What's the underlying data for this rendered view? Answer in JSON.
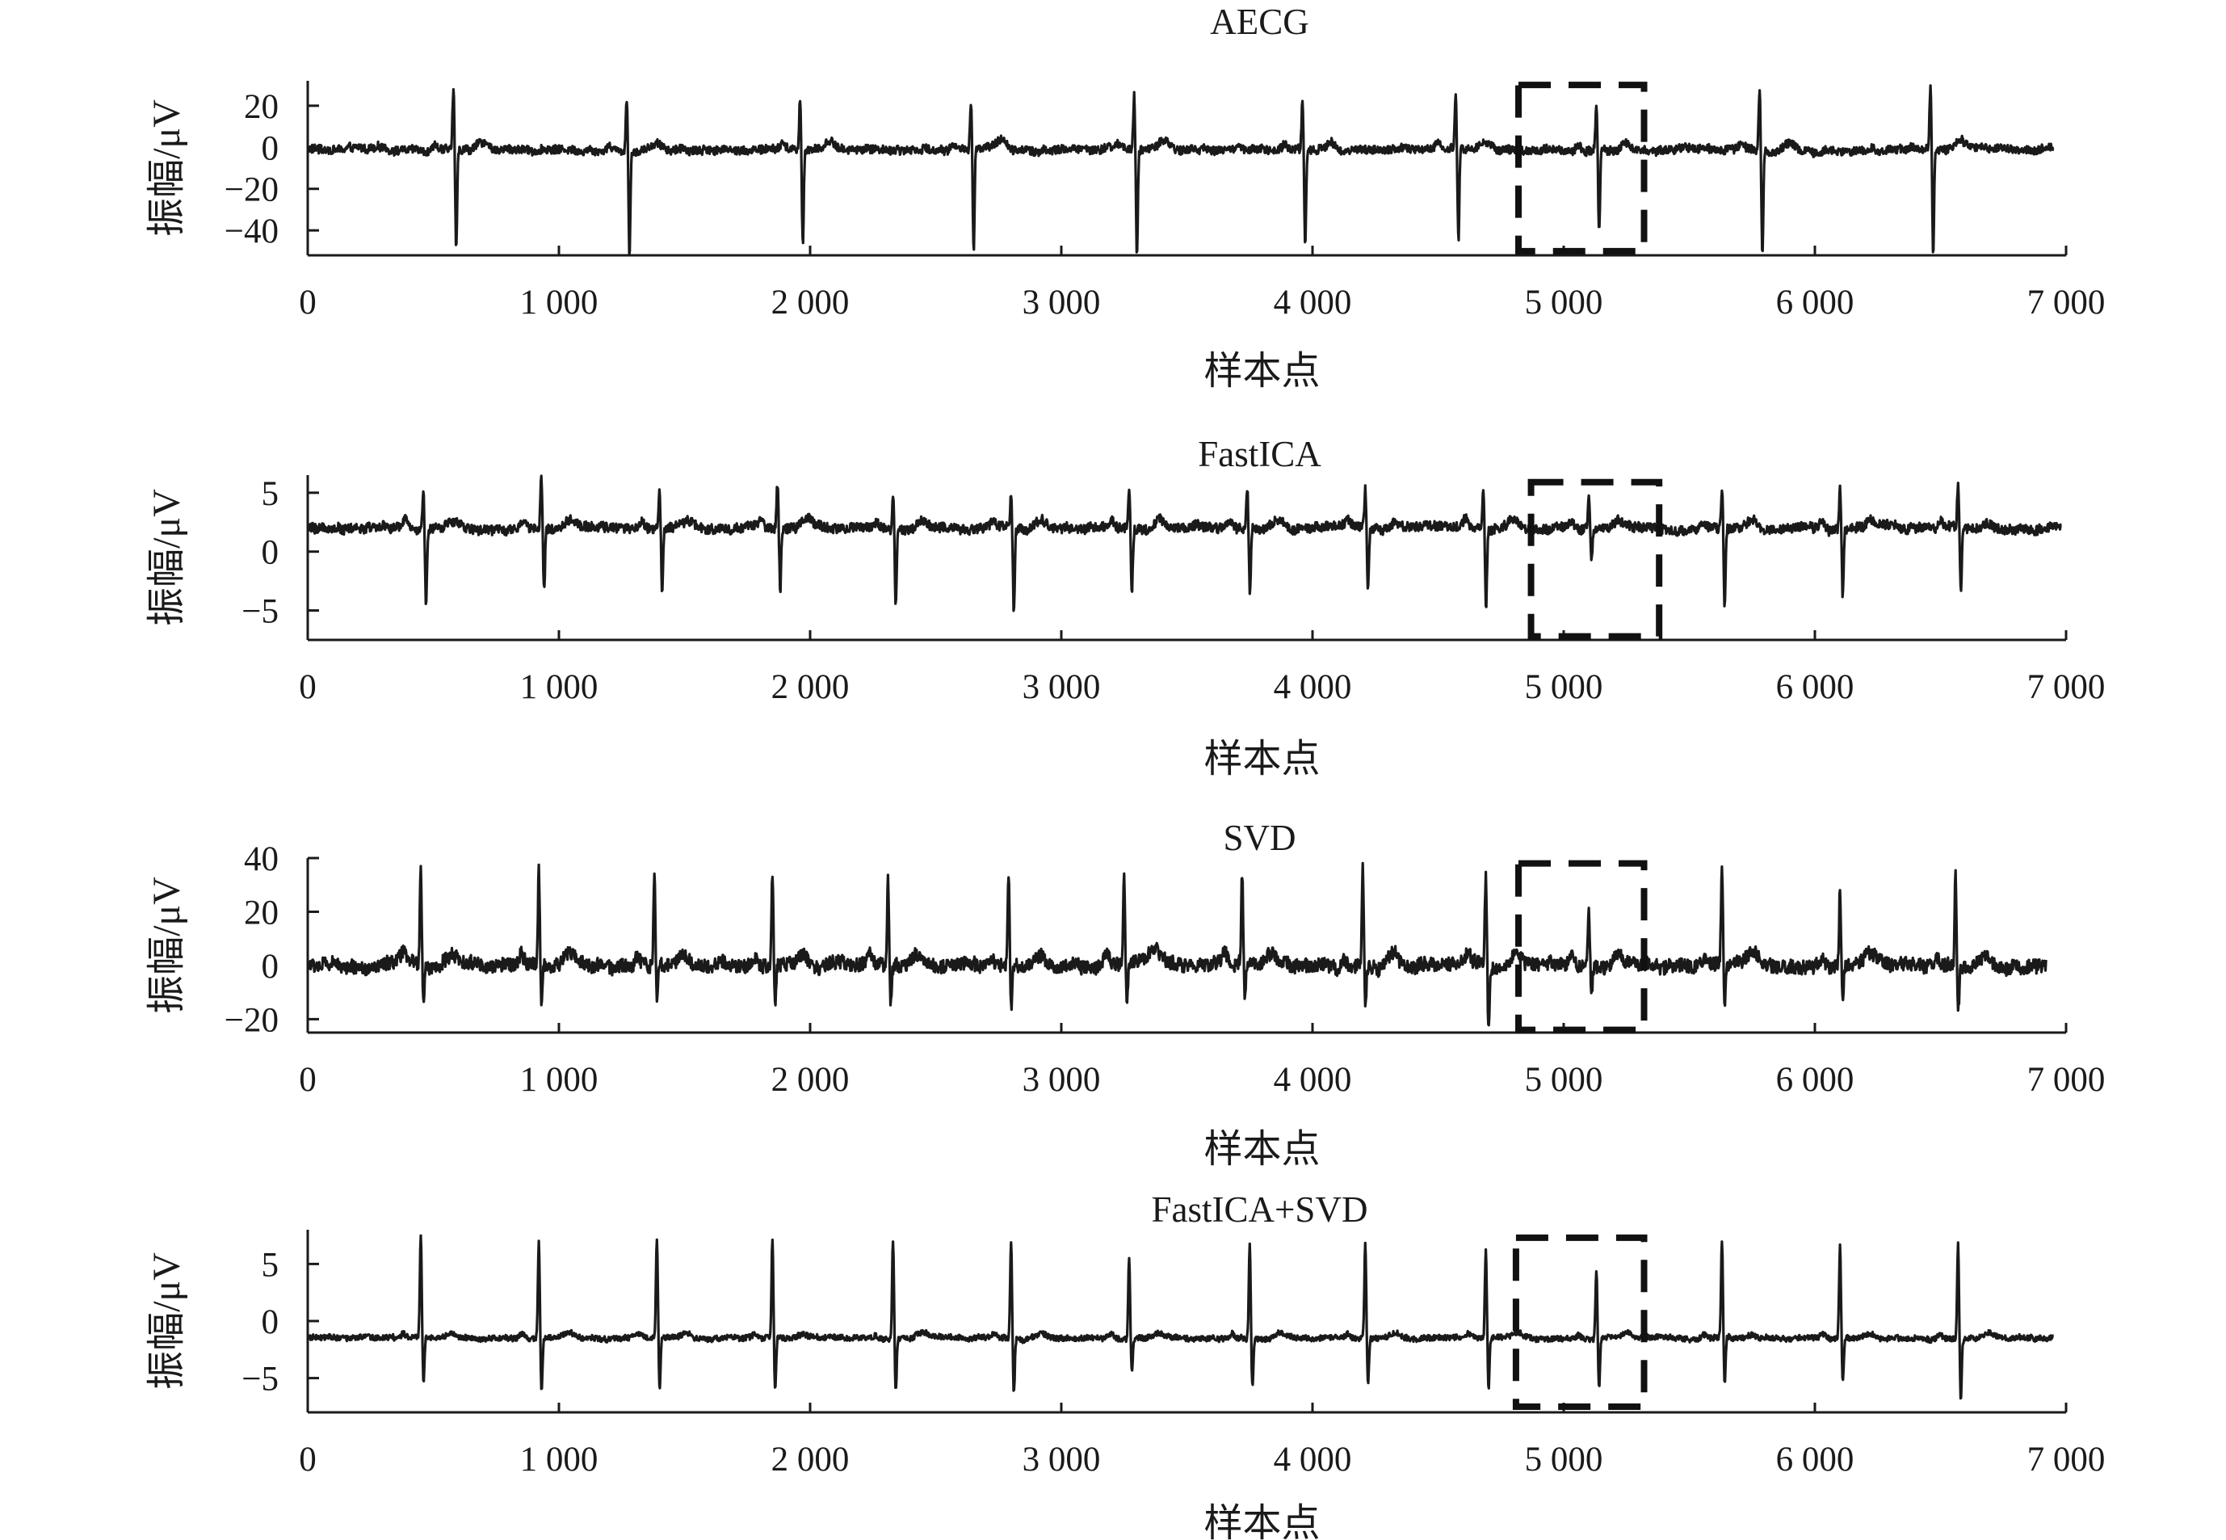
{
  "chart_data": [
    {
      "type": "line",
      "title": "AECG",
      "xlabel": "样本点",
      "ylabel": "振幅/μV",
      "xlim": [
        0,
        7000
      ],
      "ylim": [
        -52,
        32
      ],
      "xticks": [
        0,
        1000,
        2000,
        3000,
        4000,
        5000,
        6000,
        7000
      ],
      "xtick_labels": [
        "0",
        "1 000",
        "2 000",
        "3 000",
        "4 000",
        "5 000",
        "6 000",
        "7 000"
      ],
      "yticks": [
        20,
        0,
        -20,
        -40
      ],
      "ytick_labels": [
        "20",
        "0",
        "−20",
        "−40"
      ],
      "series": [
        {
          "signal_length": 6950,
          "baseline": -1,
          "noise": 2.5,
          "beat_times": [
            580,
            1270,
            1960,
            2640,
            3290,
            3960,
            4570,
            5130,
            5780,
            6460
          ],
          "beat_peaks": [
            28,
            24,
            22,
            22,
            26,
            22,
            23,
            20,
            30,
            28
          ],
          "beat_troughs": [
            -50,
            -52,
            -48,
            -50,
            -52,
            -48,
            -46,
            -40,
            -52,
            -52
          ]
        }
      ],
      "highlight_box": {
        "x": [
          4820,
          5320
        ],
        "y": [
          -50,
          30
        ]
      }
    },
    {
      "type": "line",
      "title": "FastICA",
      "xlabel": "样本点",
      "ylabel": "振幅/μV",
      "xlim": [
        0,
        7000
      ],
      "ylim": [
        -7.5,
        6.5
      ],
      "xticks": [
        0,
        1000,
        2000,
        3000,
        4000,
        5000,
        6000,
        7000
      ],
      "xtick_labels": [
        "0",
        "1 000",
        "2 000",
        "3 000",
        "4 000",
        "5 000",
        "6 000",
        "7 000"
      ],
      "yticks": [
        5,
        0,
        -5
      ],
      "ytick_labels": [
        "5",
        "0",
        "−5"
      ],
      "series": [
        {
          "signal_length": 6980,
          "baseline": 2,
          "noise": 0.5,
          "beat_times": [
            460,
            930,
            1400,
            1870,
            2330,
            2800,
            3270,
            3740,
            4210,
            4680,
            5100,
            5630,
            6100,
            6570
          ],
          "beat_peaks": [
            5.3,
            6.5,
            5.3,
            5.8,
            5.3,
            5.3,
            5.5,
            5.5,
            5.3,
            5.3,
            4.5,
            5.5,
            5.3,
            5.5
          ],
          "beat_troughs": [
            -4.2,
            -3.4,
            -3.6,
            -3.2,
            -4.5,
            -4.9,
            -3.3,
            -3.8,
            -3.2,
            -4.6,
            -0.5,
            -4.5,
            -3.8,
            -3.5
          ]
        }
      ],
      "highlight_box": {
        "x": [
          4870,
          5380
        ],
        "y": [
          -7.2,
          5.9
        ]
      }
    },
    {
      "type": "line",
      "title": "SVD",
      "xlabel": "样本点",
      "ylabel": "振幅/μV",
      "xlim": [
        0,
        7000
      ],
      "ylim": [
        -25,
        40
      ],
      "xticks": [
        0,
        1000,
        2000,
        3000,
        4000,
        5000,
        6000,
        7000
      ],
      "xtick_labels": [
        "0",
        "1 000",
        "2 000",
        "3 000",
        "4 000",
        "5 000",
        "6 000",
        "7 000"
      ],
      "yticks": [
        40,
        20,
        0,
        -20
      ],
      "ytick_labels": [
        "40",
        "20",
        "0",
        "−20"
      ],
      "series": [
        {
          "signal_length": 6920,
          "baseline": 0,
          "noise": 3.2,
          "beat_times": [
            450,
            920,
            1380,
            1850,
            2310,
            2790,
            3250,
            3720,
            4200,
            4690,
            5100,
            5630,
            6100,
            6560
          ],
          "beat_peaks": [
            37,
            35,
            36,
            35,
            34,
            36,
            33,
            33,
            37,
            33,
            20,
            37,
            30,
            35
          ],
          "beat_troughs": [
            -15,
            -14,
            -14,
            -16,
            -14,
            -16,
            -14,
            -14,
            -14,
            -25,
            -10,
            -16,
            -14,
            -16
          ]
        }
      ],
      "highlight_box": {
        "x": [
          4820,
          5320
        ],
        "y": [
          -24,
          38
        ]
      }
    },
    {
      "type": "line",
      "title": "FastICA+SVD",
      "xlabel": "样本点",
      "ylabel": "振幅/μV",
      "xlim": [
        0,
        7000
      ],
      "ylim": [
        -8,
        8
      ],
      "xticks": [
        0,
        1000,
        2000,
        3000,
        4000,
        5000,
        6000,
        7000
      ],
      "xtick_labels": [
        "0",
        "1 000",
        "2 000",
        "3 000",
        "4 000",
        "5 000",
        "6 000",
        "7 000"
      ],
      "yticks": [
        5,
        0,
        -5
      ],
      "ytick_labels": [
        "5",
        "0",
        "−5"
      ],
      "series": [
        {
          "signal_length": 6950,
          "baseline": -1.5,
          "noise": 0.3,
          "beat_times": [
            450,
            920,
            1390,
            1850,
            2330,
            2800,
            3270,
            3750,
            4210,
            4690,
            5130,
            5630,
            6100,
            6570
          ],
          "beat_peaks": [
            7.5,
            7.0,
            7.3,
            7.0,
            7.3,
            7.0,
            5.5,
            6.8,
            7.0,
            6.5,
            4.5,
            7.0,
            6.8,
            7.0
          ],
          "beat_troughs": [
            -5.5,
            -6.3,
            -6.0,
            -6.3,
            -6.0,
            -6.3,
            -4.5,
            -5.8,
            -5.5,
            -5.8,
            -5.8,
            -5.5,
            -5.3,
            -6.8
          ]
        }
      ],
      "highlight_box": {
        "x": [
          4810,
          5320
        ],
        "y": [
          -7.5,
          7.3
        ]
      }
    }
  ]
}
